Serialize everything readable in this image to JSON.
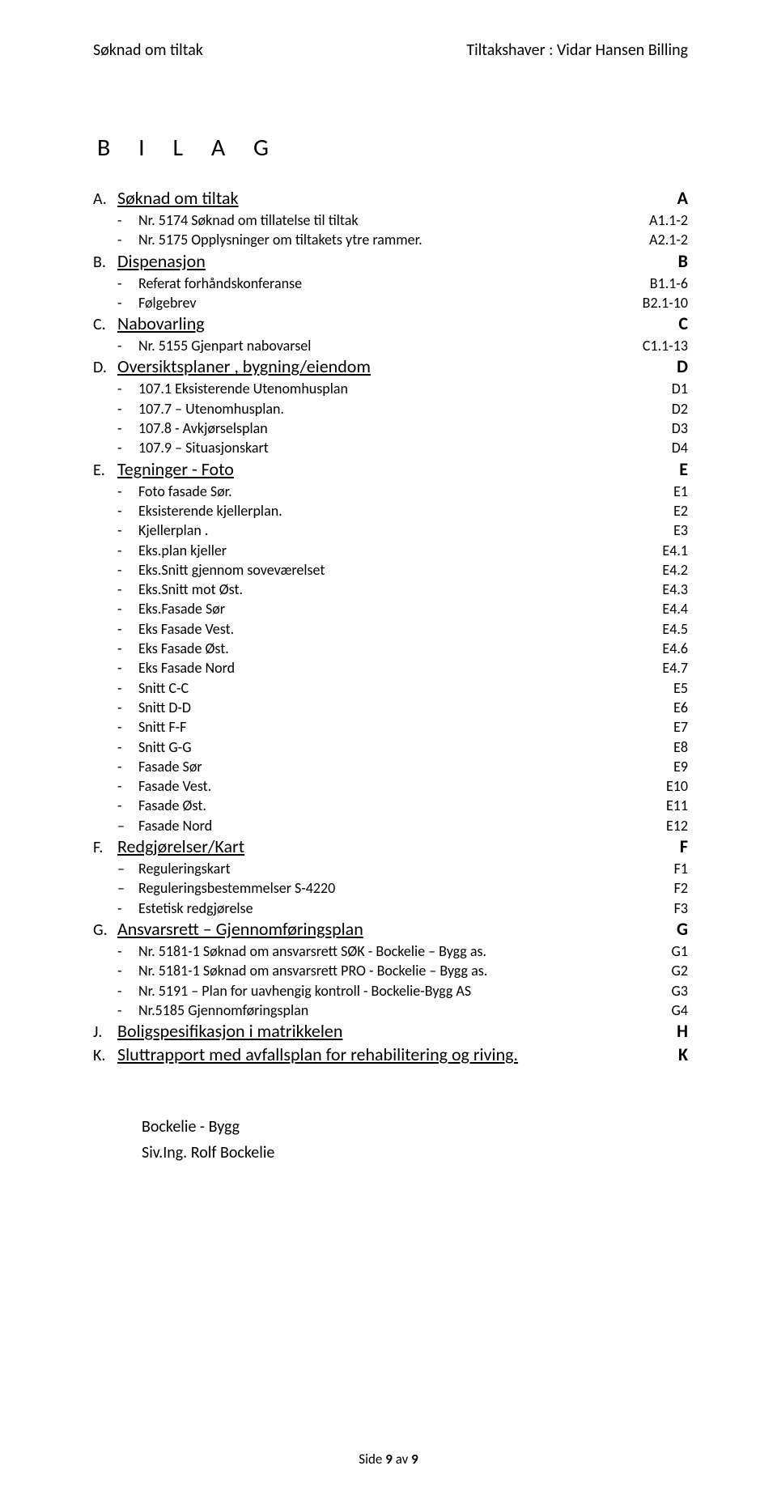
{
  "header": {
    "left": "Søknad om tiltak",
    "right": "Tiltakshaver : Vidar Hansen Billing"
  },
  "title": "B I L A G",
  "sections": [
    {
      "letter": "A.",
      "name": "Søknad om tiltak",
      "code": "A",
      "items": [
        {
          "bullet": "-",
          "label": "Nr. 5174 Søknad om tillatelse til tiltak",
          "code": "A1.1-2"
        },
        {
          "bullet": "-",
          "label": "Nr. 5175 Opplysninger om tiltakets ytre rammer.",
          "code": "A2.1-2"
        }
      ]
    },
    {
      "letter": "B.",
      "name": "Dispenasjon",
      "code": "B",
      "items": [
        {
          "bullet": "-",
          "label": "Referat forhåndskonferanse",
          "code": "B1.1-6"
        },
        {
          "bullet": "-",
          "label": "Følgebrev",
          "code": "B2.1-10"
        }
      ]
    },
    {
      "letter": "C.",
      "name": "Nabovarling",
      "code": "C",
      "items": [
        {
          "bullet": "-",
          "label": "Nr. 5155 Gjenpart nabovarsel",
          "code": "C1.1-13"
        }
      ]
    },
    {
      "letter": "D.",
      "name": "Oversiktsplaner ,  bygning/eiendom",
      "code": "D",
      "items": [
        {
          "bullet": "-",
          "label": "107.1 Eksisterende Utenomhusplan",
          "code": "D1"
        },
        {
          "bullet": "-",
          "label": "107.7 – Utenomhusplan.",
          "code": "D2"
        },
        {
          "bullet": "-",
          "label": "107.8 - Avkjørselsplan",
          "code": "D3"
        },
        {
          "bullet": "-",
          "label": "107.9 – Situasjonskart",
          "code": "D4"
        }
      ]
    },
    {
      "letter": "E.",
      "name": "Tegninger - Foto",
      "code": "E",
      "items": [
        {
          "bullet": "-",
          "label": "Foto fasade Sør.",
          "code": "E1"
        },
        {
          "bullet": "-",
          "label": "Eksisterende kjellerplan.",
          "code": "E2"
        },
        {
          "bullet": "-",
          "label": "Kjellerplan                                           .",
          "code": "E3"
        },
        {
          "bullet": "-",
          "label": "Eks.plan kjeller",
          "code": "E4.1"
        },
        {
          "bullet": "-",
          "label": "Eks.Snitt gjennom soveværelset",
          "code": "E4.2"
        },
        {
          "bullet": "-",
          "label": "Eks.Snitt mot Øst.",
          "code": "E4.3"
        },
        {
          "bullet": "-",
          "label": "Eks.Fasade Sør",
          "code": "E4.4"
        },
        {
          "bullet": "-",
          "label": "Eks Fasade Vest.",
          "code": "E4.5"
        },
        {
          "bullet": "-",
          "label": "Eks Fasade Øst.",
          "code": "E4.6"
        },
        {
          "bullet": "-",
          "label": "Eks Fasade Nord",
          "code": "E4.7"
        },
        {
          "bullet": "-",
          "label": "Snitt C-C",
          "code": "E5"
        },
        {
          "bullet": "-",
          "label": "Snitt D-D",
          "code": "E6"
        },
        {
          "bullet": "-",
          "label": "Snitt F-F",
          "code": "E7"
        },
        {
          "bullet": "-",
          "label": "Snitt G-G",
          "code": "E8"
        },
        {
          "bullet": "-",
          "label": "Fasade Sør",
          "code": "E9"
        },
        {
          "bullet": "-",
          "label": "Fasade Vest.",
          "code": "E10"
        },
        {
          "bullet": "-",
          "label": "Fasade Øst.",
          "code": "E11"
        },
        {
          "bullet": "–",
          "label": "Fasade Nord",
          "code": "E12"
        }
      ]
    },
    {
      "letter": "F.",
      "name": "Redgjørelser/Kart",
      "code": "F",
      "items": [
        {
          "bullet": "–",
          "label": "Reguleringskart",
          "code": "F1"
        },
        {
          "bullet": "–",
          "label": "Reguleringsbestemmelser S-4220",
          "code": "F2"
        },
        {
          "bullet": "-",
          "label": "Estetisk redgjørelse",
          "code": "F3"
        }
      ]
    },
    {
      "letter": "G.",
      "name": "Ansvarsrett – Gjennomføringsplan",
      "code": "G",
      "items": [
        {
          "bullet": "-",
          "label": "Nr. 5181-1 Søknad om ansvarsrett  SØK   -  Bockelie – Bygg as.",
          "code": "G1"
        },
        {
          "bullet": "-",
          "label": "Nr. 5181-1 Søknad om ansvarsrett  PRO    -  Bockelie – Bygg as.",
          "code": "G2"
        },
        {
          "bullet": "-",
          "label": "Nr. 5191 – Plan for uavhengig kontroll   -  Bockelie-Bygg AS",
          "code": "G3"
        },
        {
          "bullet": "-",
          "label": "Nr.5185 Gjennomføringsplan",
          "code": "G4"
        }
      ]
    },
    {
      "letter": "J.",
      "name": "Boligspesifikasjon i matrikkelen",
      "code": "H",
      "items": []
    },
    {
      "letter": "K.",
      "name": "Sluttrapport med avfallsplan for rehabilitering og riving.",
      "code": "K",
      "items": []
    }
  ],
  "footer_sig": {
    "company": "Bockelie - Bygg",
    "signer": "Siv.Ing. Rolf Bockelie"
  },
  "page_footer": {
    "prefix": "Side ",
    "page": "9",
    "sep": " av ",
    "total": "9"
  }
}
